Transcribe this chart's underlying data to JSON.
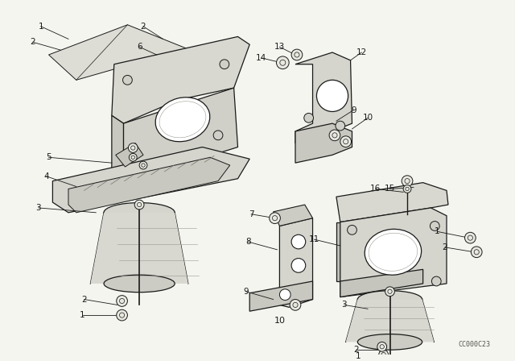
{
  "background_color": "#f5f5f0",
  "line_color": "#1a1a1a",
  "fig_width": 6.4,
  "fig_height": 4.48,
  "dpi": 100,
  "watermark": "CC000C23",
  "lw": 0.9
}
